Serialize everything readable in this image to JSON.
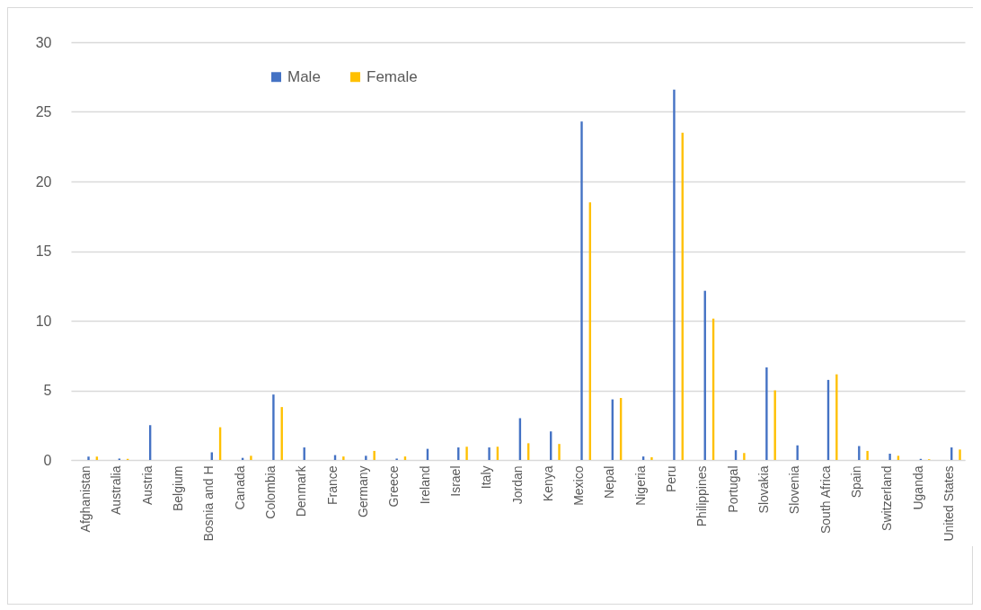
{
  "chart_data": {
    "type": "bar",
    "categories": [
      "Afghanistan",
      "Australia",
      "Austria",
      "Belgium",
      "Bosnia and H",
      "Canada",
      "Colombia",
      "Denmark",
      "France",
      "Germany",
      "Greece",
      "Ireland",
      "Israel",
      "Italy",
      "Jordan",
      "Kenya",
      "Mexico",
      "Nepal",
      "Nigeria",
      "Peru",
      "Philippines",
      "Portugal",
      "Slovakia",
      "Slovenia",
      "South Africa",
      "Spain",
      "Switzerland",
      "Uganda",
      "United States"
    ],
    "series": [
      {
        "name": "Male",
        "color": "#4472c4",
        "values": [
          0.25,
          0.1,
          2.5,
          0,
          0.55,
          0.15,
          4.7,
          0.9,
          0.35,
          0.3,
          0.1,
          0.8,
          0.9,
          0.9,
          3.0,
          2.05,
          24.3,
          4.35,
          0.25,
          26.6,
          12.15,
          0.7,
          6.65,
          1.05,
          5.75,
          1.0,
          0.45,
          0.08,
          0.9
        ]
      },
      {
        "name": "Female",
        "color": "#ffc000",
        "values": [
          0.25,
          0.08,
          0,
          0,
          2.35,
          0.3,
          3.8,
          0,
          0.25,
          0.65,
          0.25,
          0,
          0.95,
          0.95,
          1.2,
          1.15,
          18.5,
          4.45,
          0.2,
          23.5,
          10.15,
          0.5,
          5.0,
          0,
          6.15,
          0.65,
          0.3,
          0.05,
          0.75
        ]
      }
    ],
    "ylim": [
      0,
      30
    ],
    "yticks": [
      0,
      5,
      10,
      15,
      20,
      25,
      30
    ],
    "grid": "y",
    "legend": "top left"
  }
}
